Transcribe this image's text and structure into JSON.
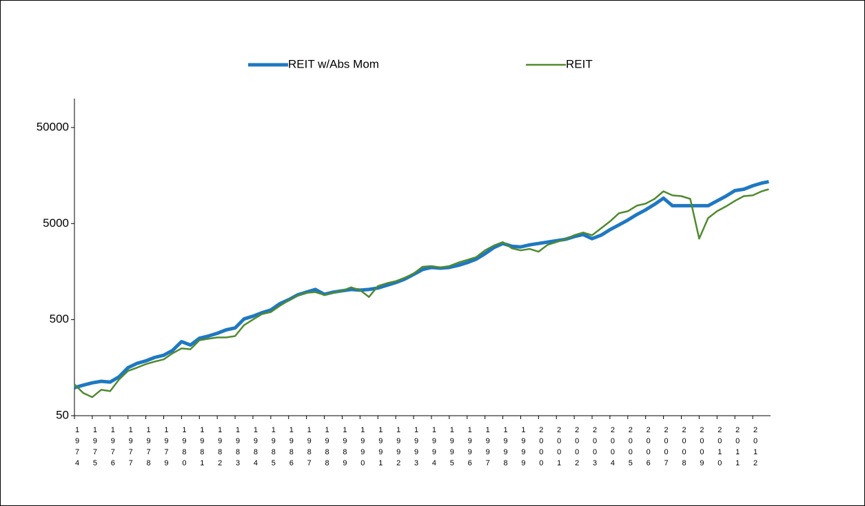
{
  "chart_data": {
    "type": "line",
    "x": [
      1974,
      1974.5,
      1975,
      1975.5,
      1976,
      1976.5,
      1977,
      1977.5,
      1978,
      1978.5,
      1979,
      1979.5,
      1980,
      1980.5,
      1981,
      1981.5,
      1982,
      1982.5,
      1983,
      1983.5,
      1984,
      1984.5,
      1985,
      1985.5,
      1986,
      1986.5,
      1987,
      1987.5,
      1988,
      1988.5,
      1989,
      1989.5,
      1990,
      1990.5,
      1991,
      1991.5,
      1992,
      1992.5,
      1993,
      1993.5,
      1994,
      1994.5,
      1995,
      1995.5,
      1996,
      1996.5,
      1997,
      1997.5,
      1998,
      1998.5,
      1999,
      1999.5,
      2000,
      2000.5,
      2001,
      2001.5,
      2002,
      2002.5,
      2003,
      2003.5,
      2004,
      2004.5,
      2005,
      2005.5,
      2006,
      2006.5,
      2007,
      2007.5,
      2008,
      2008.5,
      2009,
      2009.5,
      2010,
      2010.5,
      2011,
      2011.5,
      2012,
      2012.5,
      2012.9
    ],
    "series": [
      {
        "name": "REIT w/Abs Mom",
        "color": "#1f78c1",
        "values": [
          98,
          104,
          110,
          114,
          112,
          127,
          158,
          175,
          186,
          202,
          213,
          239,
          295,
          272,
          320,
          337,
          360,
          391,
          410,
          508,
          543,
          589,
          630,
          730,
          805,
          904,
          966,
          1030,
          918,
          966,
          998,
          1030,
          1014,
          1030,
          1066,
          1138,
          1215,
          1319,
          1479,
          1660,
          1745,
          1717,
          1745,
          1833,
          1958,
          2128,
          2426,
          2812,
          3104,
          2904,
          2857,
          3003,
          3104,
          3205,
          3314,
          3426,
          3656,
          3845,
          3481,
          3781,
          4313,
          4838,
          5432,
          6193,
          6949,
          7925,
          9179,
          7670,
          7670,
          7670,
          7670,
          7670,
          8604,
          9659,
          11010,
          11380,
          12360,
          13190,
          13640
        ]
      },
      {
        "name": "REIT",
        "color": "#4f8a2f",
        "values": [
          106,
          86,
          78,
          93,
          90,
          119,
          146,
          158,
          172,
          183,
          193,
          223,
          251,
          246,
          305,
          316,
          326,
          326,
          337,
          438,
          500,
          570,
          599,
          695,
          792,
          889,
          950,
          966,
          904,
          950,
          998,
          1084,
          1014,
          860,
          1119,
          1196,
          1256,
          1364,
          1506,
          1774,
          1803,
          1745,
          1803,
          1958,
          2090,
          2233,
          2631,
          2952,
          3205,
          2766,
          2631,
          2720,
          2546,
          3003,
          3205,
          3426,
          3781,
          4036,
          3781,
          4456,
          5250,
          6400,
          6720,
          7670,
          8060,
          9040,
          10840,
          9820,
          9659,
          9040,
          3481,
          5700,
          6720,
          7540,
          8604,
          9659,
          9820,
          10840,
          11380
        ]
      }
    ],
    "xlim": [
      1974,
      2013
    ],
    "xticks": [
      1974,
      1975,
      1976,
      1977,
      1978,
      1979,
      1980,
      1981,
      1982,
      1983,
      1984,
      1985,
      1986,
      1987,
      1988,
      1989,
      1990,
      1991,
      1992,
      1993,
      1994,
      1995,
      1996,
      1997,
      1998,
      1999,
      2000,
      2001,
      2002,
      2003,
      2004,
      2005,
      2006,
      2007,
      2008,
      2009,
      2010,
      2011,
      2012
    ],
    "ylim": [
      50,
      100000
    ],
    "yticks": [
      50,
      500,
      5000,
      50000
    ],
    "log_y": true,
    "legend": "top"
  }
}
